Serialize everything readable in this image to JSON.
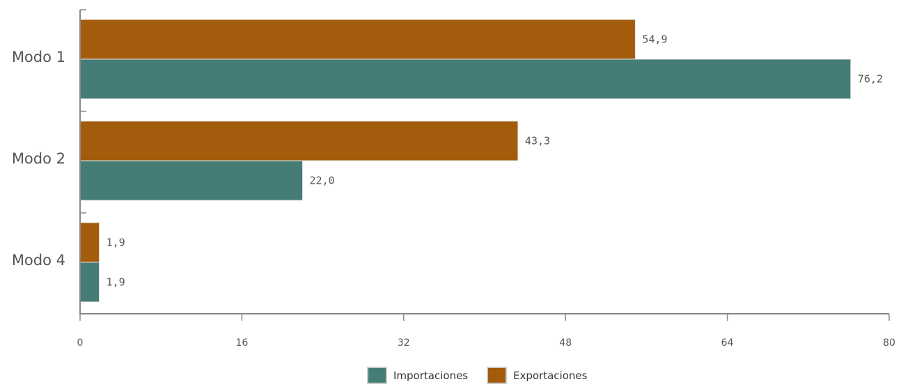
{
  "colors": {
    "importaciones": "#457d76",
    "exportaciones": "#a35b0c"
  },
  "chart_data": {
    "type": "bar",
    "orientation": "horizontal",
    "categories": [
      "Modo 1",
      "Modo 2",
      "Modo 4"
    ],
    "series": [
      {
        "name": "Exportaciones",
        "values": [
          54.9,
          43.3,
          1.9
        ],
        "labels": [
          "54,9",
          "43,3",
          "1,9"
        ]
      },
      {
        "name": "Importaciones",
        "values": [
          76.2,
          22.0,
          1.9
        ],
        "labels": [
          "76,2",
          "22,0",
          "1,9"
        ]
      }
    ],
    "xlim": [
      0,
      80
    ],
    "xticks": [
      0,
      16,
      32,
      48,
      64,
      80
    ],
    "xtick_labels": [
      "0",
      "16",
      "32",
      "48",
      "64",
      "80"
    ],
    "grid": false,
    "legend_position": "bottom-center",
    "legend": [
      "Importaciones",
      "Exportaciones"
    ]
  }
}
